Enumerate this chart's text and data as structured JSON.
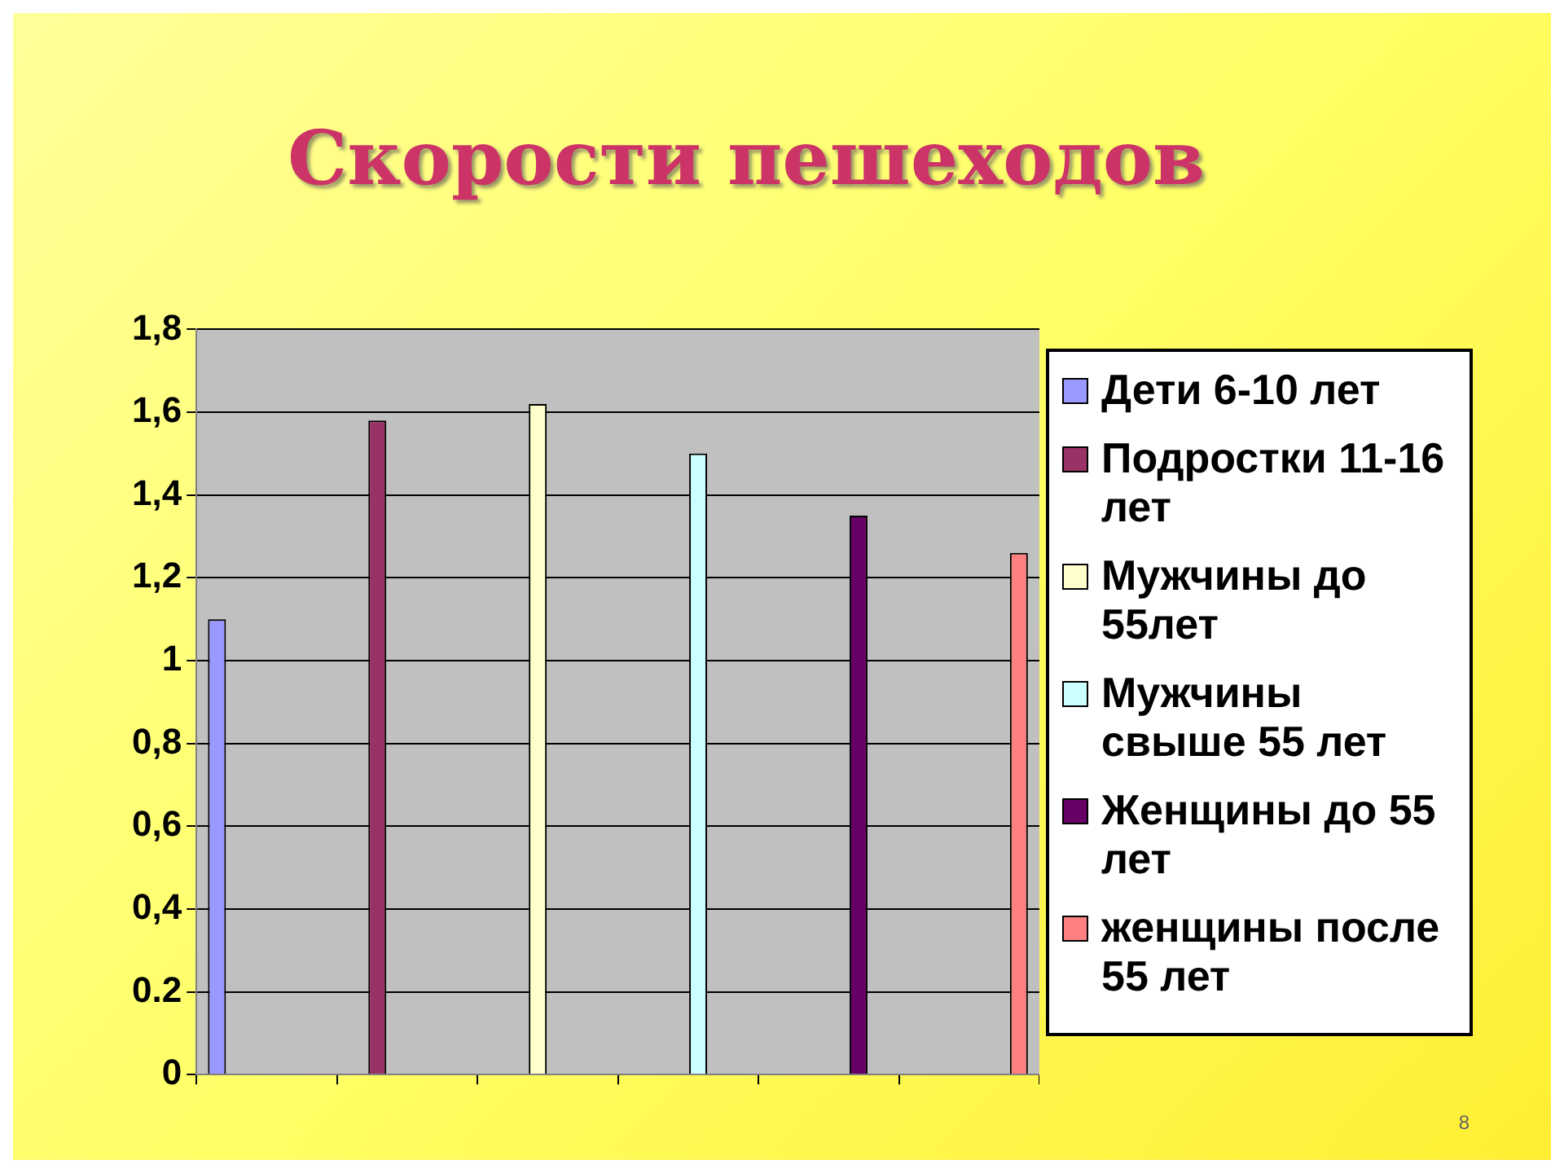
{
  "chart_data": {
    "type": "bar",
    "title": "Скорости пешеходов",
    "categories": [
      null,
      null,
      null,
      null,
      null,
      null
    ],
    "series": [
      {
        "name": "Дети 6-10 лет",
        "color": "#9999ff",
        "values": [
          1.1,
          null,
          null,
          null,
          null,
          null
        ]
      },
      {
        "name": "Подростки 11-16 лет",
        "color": "#993366",
        "values": [
          null,
          1.58,
          null,
          null,
          null,
          null
        ]
      },
      {
        "name": "Мужчины до 55лет",
        "color": "#ffffcc",
        "values": [
          null,
          null,
          1.62,
          null,
          null,
          null
        ]
      },
      {
        "name": "Мужчины свыше 55 лет",
        "color": "#ccffff",
        "values": [
          null,
          null,
          null,
          1.5,
          null,
          null
        ]
      },
      {
        "name": "Женщины до 55 лет",
        "color": "#660066",
        "values": [
          null,
          null,
          null,
          null,
          1.35,
          null
        ]
      },
      {
        "name": "женщины после 55 лет",
        "color": "#ff8080",
        "values": [
          null,
          null,
          null,
          null,
          null,
          1.26
        ]
      }
    ],
    "ylim": [
      0,
      1.8
    ],
    "yticks": [
      {
        "value": 0,
        "label": "0"
      },
      {
        "value": 0.2,
        "label": "0.2"
      },
      {
        "value": 0.4,
        "label": "0,4"
      },
      {
        "value": 0.6,
        "label": "0,6"
      },
      {
        "value": 0.8,
        "label": "0,8"
      },
      {
        "value": 1,
        "label": "1"
      },
      {
        "value": 1.2,
        "label": "1,2"
      },
      {
        "value": 1.4,
        "label": "1,4"
      },
      {
        "value": 1.6,
        "label": "1,6"
      },
      {
        "value": 1.8,
        "label": "1,8"
      }
    ],
    "grid": "y",
    "legend": "right",
    "annotations": [
      "8"
    ]
  }
}
